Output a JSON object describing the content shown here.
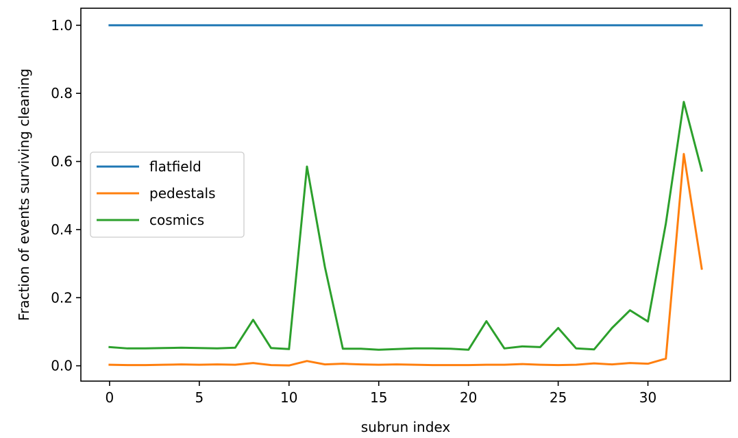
{
  "chart_data": {
    "type": "line",
    "xlabel": "subrun index",
    "ylabel": "Fraction of events surviving cleaning",
    "xlim": [
      -1.6,
      34.6
    ],
    "ylim": [
      -0.045,
      1.05
    ],
    "xticks": [
      0,
      5,
      10,
      15,
      20,
      25,
      30
    ],
    "yticks": [
      0.0,
      0.2,
      0.4,
      0.6,
      0.8,
      1.0
    ],
    "xtick_labels": [
      "0",
      "5",
      "10",
      "15",
      "20",
      "25",
      "30"
    ],
    "ytick_labels": [
      "0.0",
      "0.2",
      "0.4",
      "0.6",
      "0.8",
      "1.0"
    ],
    "grid": false,
    "legend_position": "center-left",
    "x": [
      0,
      1,
      2,
      3,
      4,
      5,
      6,
      7,
      8,
      9,
      10,
      11,
      12,
      13,
      14,
      15,
      16,
      17,
      18,
      19,
      20,
      21,
      22,
      23,
      24,
      25,
      26,
      27,
      28,
      29,
      30,
      31,
      32,
      33
    ],
    "series": [
      {
        "name": "flatfield",
        "color": "#1f77b4",
        "values": [
          1,
          1,
          1,
          1,
          1,
          1,
          1,
          1,
          1,
          1,
          1,
          1,
          1,
          1,
          1,
          1,
          1,
          1,
          1,
          1,
          1,
          1,
          1,
          1,
          1,
          1,
          1,
          1,
          1,
          1,
          1,
          1,
          1,
          1
        ]
      },
      {
        "name": "pedestals",
        "color": "#ff7f0e",
        "values": [
          0.003,
          0.002,
          0.002,
          0.003,
          0.004,
          0.003,
          0.004,
          0.003,
          0.008,
          0.002,
          0.001,
          0.014,
          0.004,
          0.006,
          0.004,
          0.003,
          0.004,
          0.003,
          0.002,
          0.002,
          0.002,
          0.003,
          0.003,
          0.005,
          0.003,
          0.002,
          0.003,
          0.007,
          0.004,
          0.008,
          0.006,
          0.021,
          0.622,
          0.285
        ]
      },
      {
        "name": "cosmics",
        "color": "#2ca02c",
        "values": [
          0.055,
          0.051,
          0.051,
          0.052,
          0.053,
          0.052,
          0.051,
          0.053,
          0.135,
          0.052,
          0.049,
          0.585,
          0.29,
          0.05,
          0.05,
          0.047,
          0.049,
          0.051,
          0.051,
          0.05,
          0.047,
          0.131,
          0.051,
          0.057,
          0.055,
          0.111,
          0.051,
          0.048,
          0.111,
          0.163,
          0.13,
          0.418,
          0.775,
          0.573
        ]
      }
    ]
  }
}
